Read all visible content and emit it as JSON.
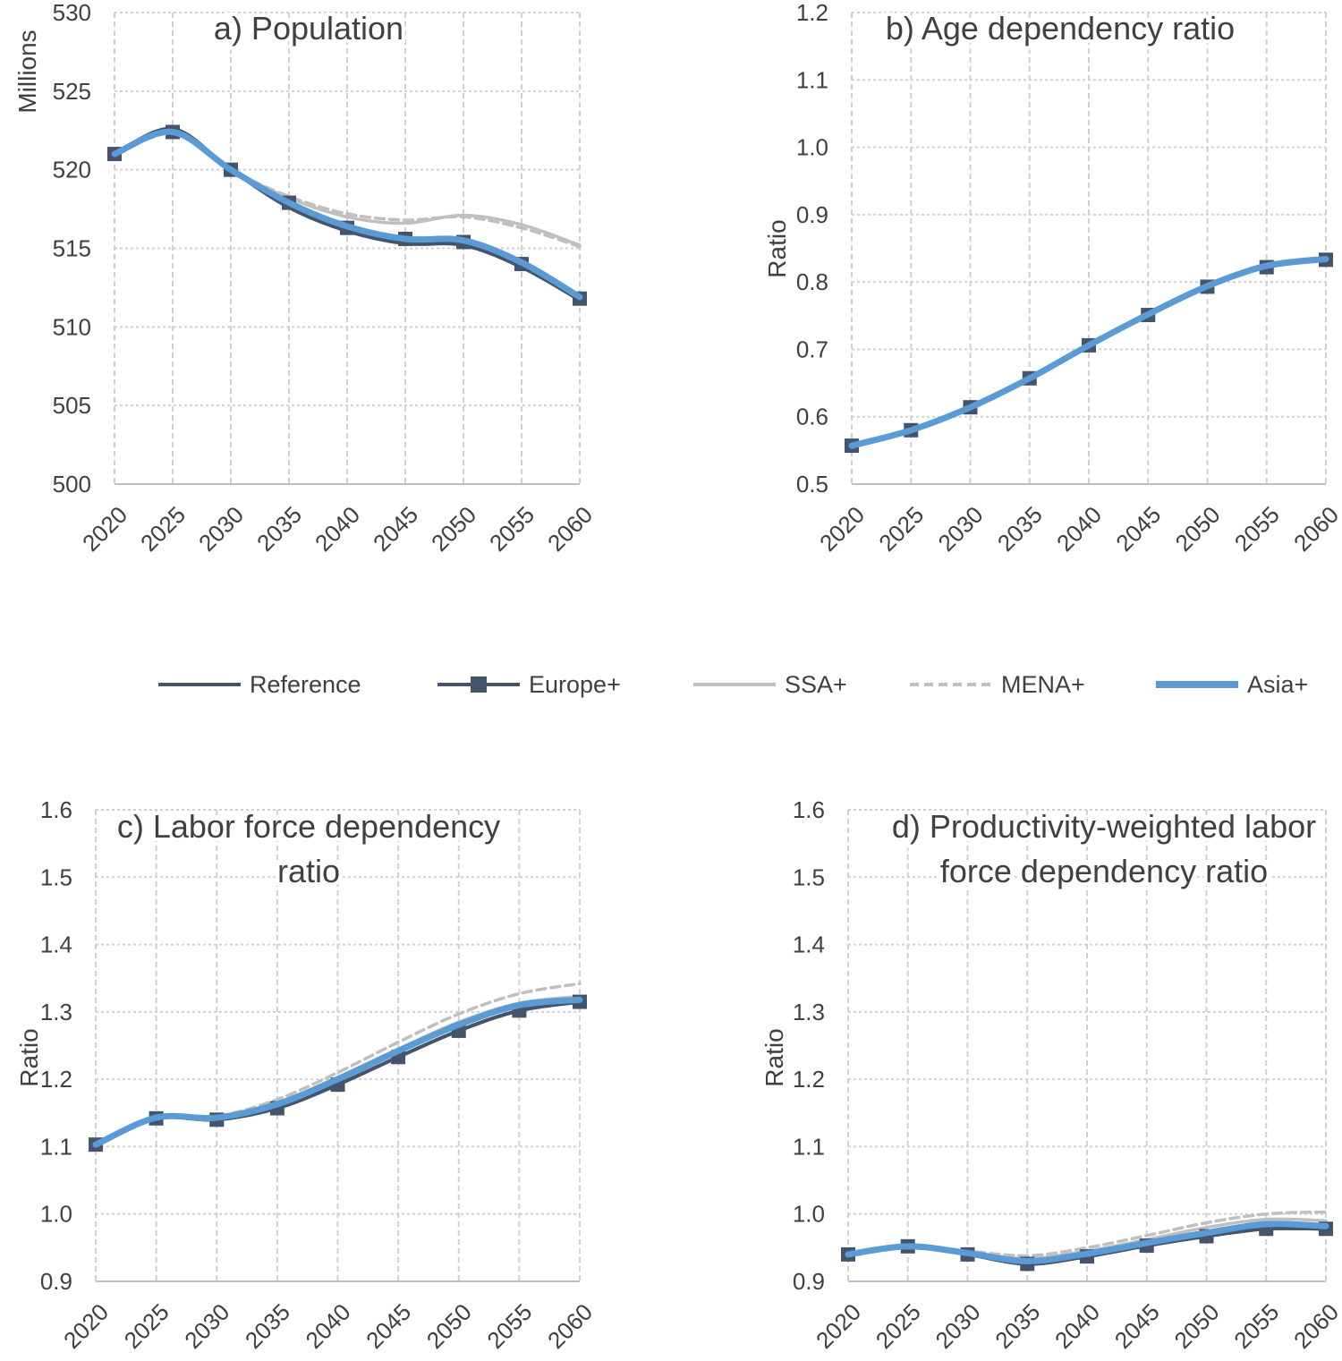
{
  "colors": {
    "reference": "#44546a",
    "europe": "#44546a",
    "ssa": "#bfbfbf",
    "mena": "#bfbfbf",
    "asia": "#5b9bd5",
    "grid": "#d0d0d0",
    "axis": "#bfbfbf",
    "text": "#404040"
  },
  "legend": [
    {
      "key": "reference",
      "label": "Reference",
      "style": "solid-dark"
    },
    {
      "key": "europe",
      "label": "Europe+",
      "style": "solid-dark-marker"
    },
    {
      "key": "ssa",
      "label": "SSA+",
      "style": "solid-light"
    },
    {
      "key": "mena",
      "label": "MENA+",
      "style": "dashed-light"
    },
    {
      "key": "asia",
      "label": "Asia+",
      "style": "solid-blue-thick"
    }
  ],
  "chart_data": [
    {
      "id": "a",
      "type": "line",
      "title": [
        "a) Population"
      ],
      "ylabel": "Millions",
      "x": [
        "2020",
        "2025",
        "2030",
        "2035",
        "2040",
        "2045",
        "2050",
        "2055",
        "2060"
      ],
      "ylim": [
        500,
        530
      ],
      "yticks": [
        "500",
        "505",
        "510",
        "515",
        "520",
        "525",
        "530"
      ],
      "series": [
        {
          "name": "Reference",
          "key": "reference",
          "values": [
            521.0,
            522.6,
            520.0,
            517.6,
            516.1,
            515.3,
            515.2,
            513.8,
            511.7
          ]
        },
        {
          "name": "SSA+",
          "key": "ssa",
          "values": [
            521.0,
            522.4,
            520.0,
            518.2,
            517.0,
            516.6,
            517.1,
            516.5,
            515.2
          ]
        },
        {
          "name": "MENA+",
          "key": "mena",
          "values": [
            521.0,
            522.4,
            520.0,
            518.3,
            517.2,
            516.8,
            517.0,
            516.3,
            515.1
          ]
        },
        {
          "name": "Europe+",
          "key": "europe",
          "values": [
            521.0,
            522.4,
            520.0,
            517.9,
            516.3,
            515.6,
            515.4,
            514.0,
            511.8
          ]
        },
        {
          "name": "Asia+",
          "key": "asia",
          "values": [
            521.0,
            522.4,
            520.0,
            517.9,
            516.4,
            515.6,
            515.5,
            514.1,
            511.9
          ]
        }
      ]
    },
    {
      "id": "b",
      "type": "line",
      "title": [
        "b) Age dependency ratio"
      ],
      "ylabel": "Ratio",
      "x": [
        "2020",
        "2025",
        "2030",
        "2035",
        "2040",
        "2045",
        "2050",
        "2055",
        "2060"
      ],
      "ylim": [
        0.5,
        1.2
      ],
      "yticks": [
        "0.5",
        "0.6",
        "0.7",
        "0.8",
        "0.9",
        "1.0",
        "1.1",
        "1.2"
      ],
      "series": [
        {
          "name": "Reference",
          "key": "reference",
          "values": [
            0.557,
            0.58,
            0.614,
            0.657,
            0.706,
            0.751,
            0.793,
            0.822,
            0.833
          ]
        },
        {
          "name": "SSA+",
          "key": "ssa",
          "values": [
            0.557,
            0.58,
            0.614,
            0.657,
            0.706,
            0.752,
            0.795,
            0.826,
            0.837
          ]
        },
        {
          "name": "MENA+",
          "key": "mena",
          "values": [
            0.557,
            0.58,
            0.614,
            0.657,
            0.706,
            0.752,
            0.795,
            0.825,
            0.836
          ]
        },
        {
          "name": "Europe+",
          "key": "europe",
          "values": [
            0.557,
            0.58,
            0.614,
            0.657,
            0.706,
            0.751,
            0.793,
            0.822,
            0.833
          ]
        },
        {
          "name": "Asia+",
          "key": "asia",
          "values": [
            0.557,
            0.58,
            0.614,
            0.657,
            0.706,
            0.752,
            0.794,
            0.824,
            0.834
          ]
        }
      ]
    },
    {
      "id": "c",
      "type": "line",
      "title": [
        "c) Labor force dependency",
        "ratio"
      ],
      "ylabel": "Ratio",
      "x": [
        "2020",
        "2025",
        "2030",
        "2035",
        "2040",
        "2045",
        "2050",
        "2055",
        "2060"
      ],
      "ylim": [
        0.9,
        1.6
      ],
      "yticks": [
        "0.9",
        "1.0",
        "1.1",
        "1.2",
        "1.3",
        "1.4",
        "1.5",
        "1.6"
      ],
      "series": [
        {
          "name": "Reference",
          "key": "reference",
          "values": [
            1.103,
            1.142,
            1.14,
            1.157,
            1.192,
            1.233,
            1.272,
            1.302,
            1.315
          ]
        },
        {
          "name": "SSA+",
          "key": "ssa",
          "values": [
            1.103,
            1.143,
            1.143,
            1.165,
            1.203,
            1.245,
            1.285,
            1.313,
            1.323
          ]
        },
        {
          "name": "MENA+",
          "key": "mena",
          "values": [
            1.103,
            1.143,
            1.145,
            1.17,
            1.21,
            1.255,
            1.297,
            1.327,
            1.342
          ]
        },
        {
          "name": "Europe+",
          "key": "europe",
          "values": [
            1.103,
            1.142,
            1.14,
            1.157,
            1.192,
            1.233,
            1.272,
            1.302,
            1.315
          ]
        },
        {
          "name": "Asia+",
          "key": "asia",
          "values": [
            1.103,
            1.143,
            1.143,
            1.163,
            1.2,
            1.242,
            1.281,
            1.31,
            1.318
          ]
        }
      ]
    },
    {
      "id": "d",
      "type": "line",
      "title": [
        "d) Productivity-weighted labor",
        "force dependency ratio"
      ],
      "ylabel": "Ratio",
      "x": [
        "2020",
        "2025",
        "2030",
        "2035",
        "2040",
        "2045",
        "2050",
        "2055",
        "2060"
      ],
      "ylim": [
        0.9,
        1.6
      ],
      "yticks": [
        "0.9",
        "1.0",
        "1.1",
        "1.2",
        "1.3",
        "1.4",
        "1.5",
        "1.6"
      ],
      "series": [
        {
          "name": "Reference",
          "key": "reference",
          "values": [
            0.94,
            0.952,
            0.94,
            0.926,
            0.937,
            0.953,
            0.967,
            0.978,
            0.978
          ]
        },
        {
          "name": "SSA+",
          "key": "ssa",
          "values": [
            0.94,
            0.952,
            0.943,
            0.934,
            0.945,
            0.962,
            0.98,
            0.992,
            0.99
          ]
        },
        {
          "name": "MENA+",
          "key": "mena",
          "values": [
            0.94,
            0.952,
            0.945,
            0.938,
            0.95,
            0.968,
            0.987,
            1.0,
            1.003
          ]
        },
        {
          "name": "Europe+",
          "key": "europe",
          "values": [
            0.94,
            0.952,
            0.94,
            0.926,
            0.937,
            0.953,
            0.967,
            0.978,
            0.978
          ]
        },
        {
          "name": "Asia+",
          "key": "asia",
          "values": [
            0.94,
            0.952,
            0.942,
            0.93,
            0.941,
            0.957,
            0.972,
            0.985,
            0.982
          ]
        }
      ]
    }
  ]
}
